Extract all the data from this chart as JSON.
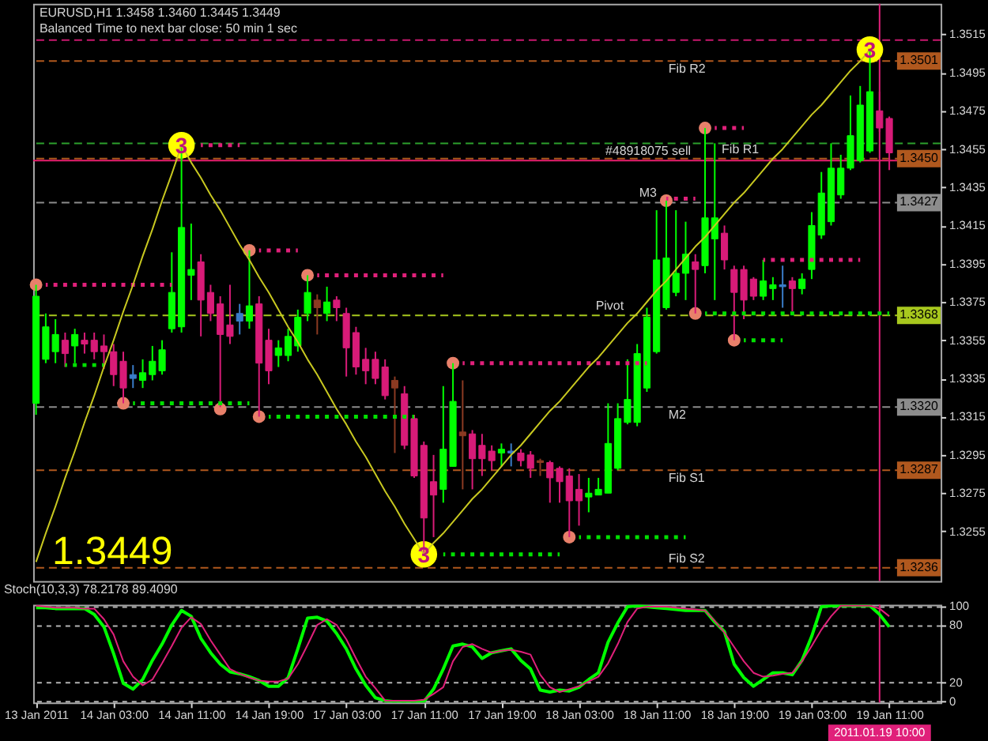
{
  "chart_data": [
    {
      "type": "candlestick",
      "title": "EURUSD,H1 1.3458 1.3460 1.3445 1.3449",
      "subtitle": "Balanced Time to next bar close: 50 min 1 sec",
      "categories": [
        "13 Jan 2011",
        null,
        null,
        null,
        null,
        null,
        null,
        null,
        "14 Jan 03:00",
        null,
        null,
        null,
        null,
        null,
        null,
        null,
        "14 Jan 11:00",
        null,
        null,
        null,
        null,
        null,
        null,
        null,
        "14 Jan 19:00",
        null,
        null,
        null,
        null,
        null,
        null,
        null,
        "17 Jan 03:00",
        null,
        null,
        null,
        null,
        null,
        null,
        null,
        "17 Jan 11:00",
        null,
        null,
        null,
        null,
        null,
        null,
        null,
        "17 Jan 19:00",
        null,
        null,
        null,
        null,
        null,
        null,
        null,
        "18 Jan 03:00",
        null,
        null,
        null,
        null,
        null,
        null,
        null,
        "18 Jan 11:00",
        null,
        null,
        null,
        null,
        null,
        null,
        null,
        "18 Jan 19:00",
        null,
        null,
        null,
        null,
        null,
        null,
        null,
        "19 Jan 03:00",
        null,
        null,
        null,
        null,
        null,
        null,
        "2011.01.19 10:00",
        "19 Jan 11:00"
      ],
      "ohlc": [
        [
          1.3322,
          1.3384,
          1.3316,
          1.3378
        ],
        [
          1.3345,
          1.3369,
          1.3343,
          1.3362
        ],
        [
          1.3349,
          1.3366,
          1.3343,
          1.3358
        ],
        [
          1.3355,
          1.3359,
          1.3341,
          1.3348
        ],
        [
          1.3352,
          1.3361,
          1.3343,
          1.3358
        ],
        [
          1.3355,
          1.3359,
          1.3348,
          1.3353
        ],
        [
          1.3355,
          1.3359,
          1.3345,
          1.3349
        ],
        [
          1.3352,
          1.3358,
          1.334,
          1.3349
        ],
        [
          1.3349,
          1.3353,
          1.3331,
          1.3337
        ],
        [
          1.3344,
          1.3349,
          1.3322,
          1.333
        ],
        [
          1.3337,
          1.3342,
          1.333,
          1.3335
        ],
        [
          1.3334,
          1.3345,
          1.333,
          1.3338
        ],
        [
          1.3337,
          1.3352,
          1.3334,
          1.3344
        ],
        [
          1.3339,
          1.3355,
          1.3337,
          1.335
        ],
        [
          1.3361,
          1.3401,
          1.3359,
          1.338
        ],
        [
          1.3362,
          1.3457,
          1.3359,
          1.3414
        ],
        [
          1.3389,
          1.3416,
          1.3376,
          1.3392
        ],
        [
          1.3396,
          1.34,
          1.3357,
          1.3376
        ],
        [
          1.338,
          1.3384,
          1.3365,
          1.3369
        ],
        [
          1.3374,
          1.3378,
          1.332,
          1.3358
        ],
        [
          1.3363,
          1.3384,
          1.3353,
          1.3357
        ],
        [
          1.3369,
          1.3374,
          1.3358,
          1.3365
        ],
        [
          1.3365,
          1.3402,
          1.3361,
          1.3373
        ],
        [
          1.3374,
          1.3378,
          1.3315,
          1.3343
        ],
        [
          1.3355,
          1.3361,
          1.3332,
          1.3339
        ],
        [
          1.3347,
          1.3355,
          1.3341,
          1.3351
        ],
        [
          1.3347,
          1.3361,
          1.3344,
          1.3357
        ],
        [
          1.3352,
          1.3371,
          1.3349,
          1.3367
        ],
        [
          1.3369,
          1.3389,
          1.3365,
          1.338
        ],
        [
          1.3376,
          1.3379,
          1.3358,
          1.3372
        ],
        [
          1.3369,
          1.3383,
          1.3365,
          1.3375
        ],
        [
          1.3376,
          1.3378,
          1.3365,
          1.3372
        ],
        [
          1.3369,
          1.3372,
          1.3336,
          1.3351
        ],
        [
          1.3359,
          1.3362,
          1.3337,
          1.3341
        ],
        [
          1.3345,
          1.3351,
          1.3332,
          1.3339
        ],
        [
          1.3345,
          1.3349,
          1.3332,
          1.3335
        ],
        [
          1.3341,
          1.3345,
          1.3324,
          1.3326
        ],
        [
          1.3334,
          1.3336,
          1.3296,
          1.333
        ],
        [
          1.3327,
          1.3331,
          1.3298,
          1.33
        ],
        [
          1.3314,
          1.3316,
          1.3283,
          1.3284
        ],
        [
          1.33,
          1.3302,
          1.3243,
          1.3262
        ],
        [
          1.3281,
          1.3295,
          1.3252,
          1.3274
        ],
        [
          1.3277,
          1.3331,
          1.327,
          1.3298
        ],
        [
          1.3289,
          1.3343,
          1.3289,
          1.3323
        ],
        [
          1.3307,
          1.3334,
          1.3277,
          1.3305
        ],
        [
          1.3306,
          1.3308,
          1.3277,
          1.3293
        ],
        [
          1.33,
          1.3306,
          1.3284,
          1.3293
        ],
        [
          1.3297,
          1.33,
          1.3287,
          1.3292
        ],
        [
          1.3296,
          1.3301,
          1.3289,
          1.3298
        ],
        [
          1.3297,
          1.3301,
          1.3289,
          1.3296
        ],
        [
          1.3296,
          1.3298,
          1.3289,
          1.3292
        ],
        [
          1.3295,
          1.3297,
          1.3283,
          1.3288
        ],
        [
          1.3292,
          1.3293,
          1.3284,
          1.3291
        ],
        [
          1.3291,
          1.3292,
          1.327,
          1.3283
        ],
        [
          1.3288,
          1.3289,
          1.327,
          1.3281
        ],
        [
          1.3284,
          1.3288,
          1.3252,
          1.3271
        ],
        [
          1.3277,
          1.3285,
          1.3258,
          1.3271
        ],
        [
          1.3273,
          1.3283,
          1.3265,
          1.3275
        ],
        [
          1.3274,
          1.3283,
          1.3274,
          1.3277
        ],
        [
          1.3275,
          1.3322,
          1.3275,
          1.3301
        ],
        [
          1.3288,
          1.3322,
          1.3287,
          1.3314
        ],
        [
          1.3312,
          1.3345,
          1.3311,
          1.3324
        ],
        [
          1.3312,
          1.3353,
          1.331,
          1.3348
        ],
        [
          1.333,
          1.3372,
          1.3328,
          1.3367
        ],
        [
          1.3349,
          1.3423,
          1.3348,
          1.3397
        ],
        [
          1.3372,
          1.3428,
          1.3371,
          1.3398
        ],
        [
          1.338,
          1.3423,
          1.3378,
          1.339
        ],
        [
          1.339,
          1.3417,
          1.3376,
          1.34
        ],
        [
          1.3396,
          1.34,
          1.3369,
          1.3392
        ],
        [
          1.3394,
          1.3466,
          1.339,
          1.3419
        ],
        [
          1.3408,
          1.3458,
          1.3376,
          1.3419
        ],
        [
          1.3411,
          1.3415,
          1.3392,
          1.3397
        ],
        [
          1.3392,
          1.3394,
          1.3355,
          1.338
        ],
        [
          1.3392,
          1.3394,
          1.3366,
          1.3376
        ],
        [
          1.3387,
          1.3388,
          1.3376,
          1.3378
        ],
        [
          1.3378,
          1.3397,
          1.3376,
          1.3386
        ],
        [
          1.3382,
          1.3388,
          1.3376,
          1.3384
        ],
        [
          1.3384,
          1.3394,
          1.3372,
          1.3383
        ],
        [
          1.3386,
          1.3388,
          1.337,
          1.3382
        ],
        [
          1.3382,
          1.339,
          1.3379,
          1.3387
        ],
        [
          1.3392,
          1.3422,
          1.3387,
          1.3415
        ],
        [
          1.341,
          1.3443,
          1.3408,
          1.3432
        ],
        [
          1.3417,
          1.3458,
          1.3415,
          1.3445
        ],
        [
          1.3431,
          1.3452,
          1.3429,
          1.3445
        ],
        [
          1.3445,
          1.3483,
          1.3444,
          1.3462
        ],
        [
          1.3449,
          1.3488,
          1.3448,
          1.3478
        ],
        [
          1.3454,
          1.3507,
          1.3453,
          1.3485
        ],
        [
          1.3475,
          1.3485,
          1.3464,
          1.3466
        ],
        [
          1.3471,
          1.3472,
          1.3444,
          1.3453
        ]
      ],
      "colors": [
        "#00ff00",
        "#00ff00",
        "#00ff00",
        "#d81b78",
        "#00ff00",
        "#d81b78",
        "#d81b78",
        "#d81b78",
        "#d81b78",
        "#d81b78",
        "#3a7cc8",
        "#00ff00",
        "#00ff00",
        "#00ff00",
        "#00ff00",
        "#00ff00",
        "#00ff00",
        "#d81b78",
        "#d81b78",
        "#d81b78",
        "#d81b78",
        "#3a7cc8",
        "#00ff00",
        "#d81b78",
        "#d81b78",
        "#00ff00",
        "#00ff00",
        "#00ff00",
        "#00ff00",
        "#8b3a22",
        "#00ff00",
        "#d81b78",
        "#d81b78",
        "#d81b78",
        "#d81b78",
        "#d81b78",
        "#d81b78",
        "#8b3a22",
        "#d81b78",
        "#d81b78",
        "#d81b78",
        "#d81b78",
        "#00ff00",
        "#00ff00",
        "#8b3a22",
        "#d81b78",
        "#d81b78",
        "#d81b78",
        "#00ff00",
        "#3a7cc8",
        "#d81b78",
        "#d81b78",
        "#8b3a22",
        "#d81b78",
        "#d81b78",
        "#d81b78",
        "#d81b78",
        "#00ff00",
        "#00ff00",
        "#00ff00",
        "#00ff00",
        "#00ff00",
        "#00ff00",
        "#00ff00",
        "#00ff00",
        "#00ff00",
        "#00ff00",
        "#00ff00",
        "#d81b78",
        "#00ff00",
        "#00ff00",
        "#d81b78",
        "#d81b78",
        "#d81b78",
        "#d81b78",
        "#00ff00",
        "#00ff00",
        "#3a7cc8",
        "#d81b78",
        "#00ff00",
        "#00ff00",
        "#00ff00",
        "#00ff00",
        "#00ff00",
        "#00ff00",
        "#00ff00",
        "#00ff00",
        "#d81b78",
        "#d81b78"
      ],
      "series": [
        {
          "type": "line",
          "line_style": "dotted",
          "color": "#e0207a",
          "values": [
            null,
            1.3384,
            1.3384,
            1.3384,
            1.3384,
            1.3384,
            1.3384,
            1.3384,
            1.3384,
            1.3384,
            1.3384,
            1.3384,
            1.3384,
            1.3384,
            1.3384,
            null,
            null,
            1.3457,
            1.3457,
            1.3457,
            1.3457,
            1.3457,
            null,
            1.3402,
            1.3402,
            1.3402,
            1.3402,
            1.3402,
            null,
            1.3389,
            1.3389,
            1.3389,
            1.3389,
            1.3389,
            1.3389,
            1.3389,
            1.3389,
            1.3389,
            1.3389,
            1.3389,
            1.3389,
            1.3389,
            1.3389,
            null,
            1.3343,
            1.3343,
            1.3343,
            1.3343,
            1.3343,
            1.3343,
            1.3343,
            1.3343,
            1.3343,
            1.3343,
            1.3343,
            1.3343,
            1.3343,
            1.3343,
            1.3343,
            1.3343,
            1.3343,
            1.3343,
            1.3343,
            1.3343,
            null,
            1.3429,
            1.3429,
            1.3429,
            1.3429,
            null,
            1.3466,
            1.3466,
            1.3466,
            1.3466,
            null,
            1.3397,
            1.3397,
            1.3397,
            1.3397,
            1.3397,
            1.3397,
            1.3397,
            1.3397,
            1.3397,
            1.3397,
            1.3397,
            null,
            null,
            null
          ]
        },
        {
          "type": "line",
          "line_style": "dotted",
          "color": "#00e000",
          "values": [
            null,
            null,
            null,
            1.3342,
            1.3342,
            1.3342,
            1.3342,
            1.3342,
            null,
            null,
            1.3322,
            1.3322,
            1.3322,
            1.3322,
            1.3322,
            1.3322,
            1.3322,
            1.3322,
            1.3322,
            1.3322,
            1.3322,
            1.3322,
            1.3322,
            null,
            1.3315,
            1.3315,
            1.3315,
            1.3315,
            1.3315,
            1.3315,
            1.3315,
            1.3315,
            1.3315,
            1.3315,
            1.3315,
            1.3315,
            1.3315,
            1.3315,
            1.3315,
            1.3315,
            null,
            null,
            1.3243,
            1.3243,
            1.3243,
            1.3243,
            1.3243,
            1.3243,
            1.3243,
            1.3243,
            1.3243,
            1.3243,
            1.3243,
            1.3243,
            1.3243,
            null,
            1.3252,
            1.3252,
            1.3252,
            1.3252,
            1.3252,
            1.3252,
            1.3252,
            1.3252,
            1.3252,
            1.3252,
            1.3252,
            1.3252,
            null,
            1.3369,
            1.3369,
            1.3369,
            1.3369,
            1.3369,
            1.3369,
            1.3369,
            1.3369,
            1.3369,
            1.3369,
            1.3369,
            1.3369,
            1.3369,
            1.3369,
            1.3369,
            1.3369,
            1.3369,
            1.3369,
            1.3369,
            1.3369
          ]
        },
        {
          "type": "line",
          "line_style": "dotted",
          "color": "#00e000",
          "values": [
            null,
            null,
            null,
            null,
            null,
            null,
            null,
            null,
            null,
            null,
            null,
            null,
            null,
            null,
            null,
            null,
            null,
            null,
            null,
            null,
            null,
            null,
            null,
            null,
            null,
            null,
            null,
            null,
            null,
            null,
            null,
            null,
            null,
            null,
            null,
            null,
            null,
            null,
            null,
            null,
            null,
            null,
            null,
            null,
            null,
            null,
            null,
            null,
            null,
            null,
            null,
            null,
            null,
            null,
            null,
            null,
            null,
            null,
            null,
            null,
            null,
            null,
            null,
            null,
            null,
            null,
            null,
            null,
            null,
            null,
            null,
            null,
            null,
            1.3355,
            1.3355,
            1.3355,
            1.3355,
            1.3355,
            null,
            null,
            null,
            null,
            null,
            null,
            null,
            null,
            null,
            null,
            null
          ]
        },
        {
          "type": "line",
          "color": "#c8c820",
          "values": [
            1.3239,
            1.3254,
            1.3268,
            1.3283,
            1.3297,
            1.3312,
            1.3326,
            1.3341,
            1.3355,
            1.337,
            1.3384,
            1.3399,
            1.3413,
            1.3428,
            1.3442,
            1.3457,
            1.3448,
            1.344,
            1.3431,
            1.3423,
            1.3414,
            1.3405,
            1.3397,
            1.3388,
            1.338,
            1.3371,
            1.3362,
            1.3354,
            1.3345,
            1.3337,
            1.3328,
            1.3319,
            1.3311,
            1.3302,
            1.3294,
            1.3285,
            1.3276,
            1.3268,
            1.3259,
            1.3251,
            1.3243,
            1.3249,
            1.3254,
            1.326,
            1.3266,
            1.3272,
            1.3277,
            1.3283,
            1.3289,
            1.3295,
            1.33,
            1.3306,
            1.3312,
            1.3318,
            1.3323,
            1.3329,
            1.3335,
            1.3341,
            1.3346,
            1.3352,
            1.3358,
            1.3364,
            1.3369,
            1.3375,
            1.3381,
            1.3386,
            1.3392,
            1.3398,
            1.3404,
            1.3409,
            1.3415,
            1.3421,
            1.3427,
            1.3432,
            1.3438,
            1.3444,
            1.345,
            1.3455,
            1.3461,
            1.3467,
            1.3473,
            1.3478,
            1.3484,
            1.349,
            1.3496,
            1.3501,
            1.3507,
            null,
            null
          ]
        },
        {
          "type": "scatter",
          "marker": "circle",
          "color": "#e8806a",
          "values": [
            1.3384,
            null,
            null,
            null,
            null,
            null,
            null,
            null,
            null,
            1.3322,
            null,
            null,
            null,
            null,
            null,
            null,
            null,
            null,
            null,
            1.3319,
            null,
            null,
            1.3402,
            1.3315,
            null,
            null,
            null,
            null,
            1.3389,
            null,
            null,
            null,
            null,
            null,
            null,
            null,
            null,
            null,
            null,
            null,
            null,
            null,
            null,
            1.3343,
            null,
            null,
            null,
            null,
            null,
            null,
            null,
            null,
            null,
            null,
            null,
            1.3252,
            null,
            null,
            null,
            null,
            null,
            null,
            null,
            null,
            null,
            1.3428,
            null,
            null,
            1.3369,
            1.3466,
            null,
            null,
            1.3355,
            null,
            null,
            null,
            null,
            null,
            null,
            null,
            null,
            null,
            null,
            null,
            null,
            null,
            null,
            null,
            null
          ]
        },
        {
          "type": "scatter",
          "marker": "circle",
          "color": "#ffff00",
          "values": [
            null,
            null,
            null,
            null,
            null,
            null,
            null,
            null,
            null,
            null,
            null,
            null,
            null,
            null,
            null,
            1.3457,
            null,
            null,
            null,
            null,
            null,
            null,
            null,
            null,
            null,
            null,
            null,
            null,
            null,
            null,
            null,
            null,
            null,
            null,
            null,
            null,
            null,
            null,
            null,
            null,
            1.3243,
            null,
            null,
            null,
            null,
            null,
            null,
            null,
            null,
            null,
            null,
            null,
            null,
            null,
            null,
            null,
            null,
            null,
            null,
            null,
            null,
            null,
            null,
            null,
            null,
            null,
            null,
            null,
            null,
            null,
            null,
            null,
            null,
            null,
            null,
            null,
            null,
            null,
            null,
            null,
            null,
            null,
            null,
            null,
            null,
            null,
            1.3507,
            null,
            null
          ]
        }
      ],
      "ylim": [
        1.3229,
        1.3531
      ],
      "yticks": [
        1.3515,
        1.3495,
        1.3475,
        1.3455,
        1.3435,
        1.3415,
        1.3395,
        1.3375,
        1.3355,
        1.3335,
        1.3315,
        1.3295,
        1.3275,
        1.3255
      ],
      "tick_labels": "y",
      "ref_lines": [
        {
          "axis": "y",
          "value": 1.3512,
          "color": "#c8186e",
          "line_style": "dashed"
        },
        {
          "axis": "y",
          "value": 1.3501,
          "label": "Fib R2",
          "color": "#b0581e",
          "line_style": "dashed"
        },
        {
          "axis": "y",
          "value": 1.3458,
          "label": "#48918075 sell",
          "color": "#2ca02c",
          "line_style": "dashed"
        },
        {
          "axis": "y",
          "value": 1.3449,
          "color": "#e8206e",
          "line_style": "solid"
        },
        {
          "axis": "y",
          "value": 1.345,
          "label": "Fib R1",
          "color": "#b0581e",
          "line_style": "dashed"
        },
        {
          "axis": "y",
          "value": 1.3427,
          "label": "M3",
          "color": "#8c8c8c",
          "line_style": "dashed"
        },
        {
          "axis": "y",
          "value": 1.3368,
          "label": "Pivot",
          "color": "#a8c81e",
          "line_style": "dashed"
        },
        {
          "axis": "y",
          "value": 1.332,
          "label": "M2",
          "color": "#8c8c8c",
          "line_style": "dashed"
        },
        {
          "axis": "y",
          "value": 1.3287,
          "label": "Fib S1",
          "color": "#b0581e",
          "line_style": "dashed"
        },
        {
          "axis": "y",
          "value": 1.3236,
          "label": "Fib S2",
          "color": "#b0581e",
          "line_style": "dashed"
        },
        {
          "axis": "x",
          "value": "2011.01.19 10:00",
          "color": "#e0207a",
          "line_style": "solid"
        }
      ],
      "annotations": [
        "1.3449",
        {
          "text": "3",
          "y": 1.3457
        },
        {
          "text": "3",
          "y": 1.3243
        },
        {
          "text": "3",
          "y": 1.3507
        },
        {
          "text": "1.3501",
          "y": 1.3501
        },
        {
          "text": "1.3450",
          "y": 1.345
        },
        {
          "text": "1.3427",
          "y": 1.3427
        },
        {
          "text": "1.3368",
          "y": 1.3368
        },
        {
          "text": "1.3320",
          "y": 1.332
        },
        {
          "text": "1.3287",
          "y": 1.3287
        },
        {
          "text": "1.3236",
          "y": 1.3236
        }
      ]
    },
    {
      "type": "line",
      "title": "Stoch(10,3,3) 78.2178 89.4090",
      "categories": [
        "13 Jan 2011",
        null,
        null,
        null,
        null,
        null,
        null,
        null,
        "14 Jan 03:00",
        null,
        null,
        null,
        null,
        null,
        null,
        null,
        "14 Jan 11:00",
        null,
        null,
        null,
        null,
        null,
        null,
        null,
        "14 Jan 19:00",
        null,
        null,
        null,
        null,
        null,
        null,
        null,
        "17 Jan 03:00",
        null,
        null,
        null,
        null,
        null,
        null,
        null,
        "17 Jan 11:00",
        null,
        null,
        null,
        null,
        null,
        null,
        null,
        "17 Jan 19:00",
        null,
        null,
        null,
        null,
        null,
        null,
        null,
        "18 Jan 03:00",
        null,
        null,
        null,
        null,
        null,
        null,
        null,
        "18 Jan 11:00",
        null,
        null,
        null,
        null,
        null,
        null,
        null,
        "18 Jan 19:00",
        null,
        null,
        null,
        null,
        null,
        null,
        null,
        "19 Jan 03:00",
        null,
        null,
        null,
        null,
        null,
        null,
        "2011.01.19 10:00",
        "19 Jan 11:00"
      ],
      "series": [
        {
          "color": "#00ff00",
          "values": [
            98,
            98,
            97,
            97,
            97,
            97,
            91,
            78,
            50,
            19,
            13,
            23,
            43,
            60,
            80,
            95,
            89,
            66,
            51,
            39,
            31,
            29,
            26,
            22,
            16,
            16,
            25,
            55,
            87,
            88,
            84,
            71,
            55,
            34,
            17,
            4,
            1,
            0,
            0,
            0,
            0,
            13,
            34,
            58,
            60,
            57,
            45,
            51,
            53,
            55,
            43,
            34,
            12,
            10,
            12,
            11,
            15,
            23,
            30,
            62,
            82,
            99,
            100,
            99,
            98,
            97,
            96,
            95,
            95,
            95,
            83,
            73,
            39,
            25,
            16,
            23,
            30,
            30,
            28,
            43,
            68,
            99,
            100,
            100,
            100,
            100,
            100,
            91,
            78
          ]
        },
        {
          "color": "#e0207a",
          "values": [
            100,
            99,
            98,
            98,
            98,
            97,
            97,
            86,
            70,
            42,
            26,
            17,
            23,
            40,
            58,
            77,
            88,
            81,
            64,
            49,
            34,
            29,
            25,
            22,
            21,
            21,
            24,
            39,
            59,
            80,
            86,
            80,
            65,
            45,
            26,
            14,
            1,
            1,
            1,
            1,
            2,
            8,
            15,
            42,
            57,
            60,
            55,
            51,
            53,
            54,
            52,
            49,
            28,
            15,
            10,
            13,
            16,
            21,
            26,
            40,
            60,
            83,
            97,
            99,
            99,
            99,
            98,
            97,
            96,
            95,
            84,
            72,
            57,
            42,
            30,
            26,
            27,
            29,
            30,
            42,
            58,
            75,
            89,
            100,
            100,
            100,
            100,
            97,
            89
          ]
        }
      ],
      "ylim": [
        -1,
        101
      ],
      "yticks": [
        100,
        80,
        20,
        0
      ],
      "grid": "y",
      "ref_lines": [
        {
          "axis": "x",
          "value": "2011.01.19 10:00",
          "color": "#e0207a",
          "line_style": "solid"
        }
      ]
    }
  ]
}
